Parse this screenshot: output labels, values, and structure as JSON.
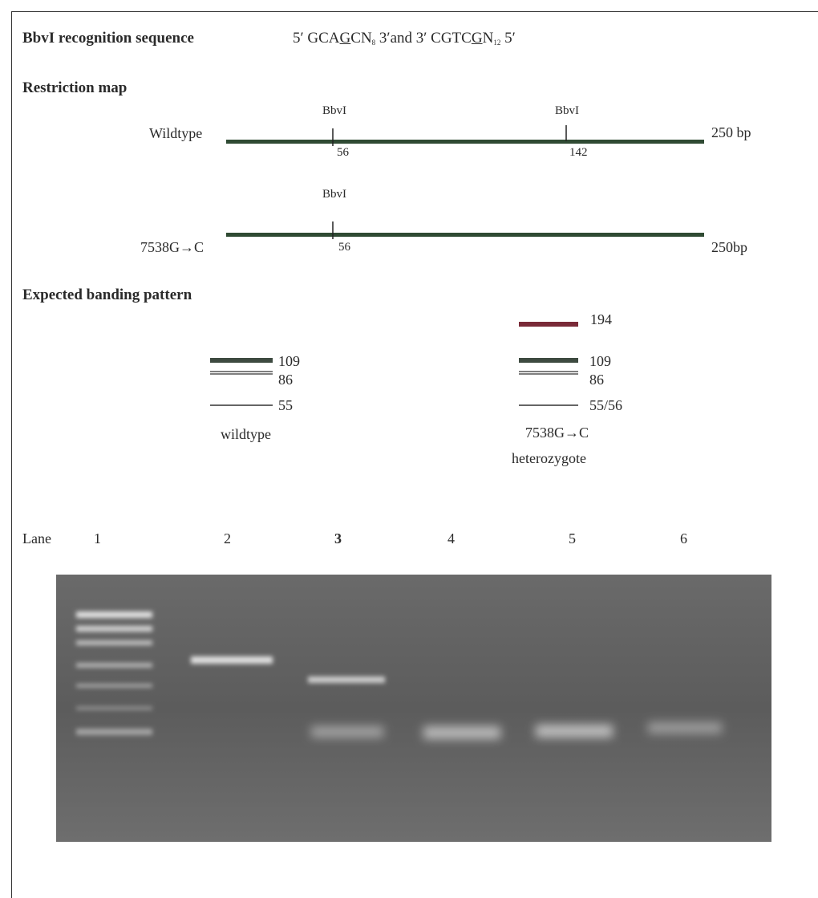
{
  "recognition": {
    "heading": "BbvI recognition sequence",
    "sequence_parts": [
      "5′ GCA",
      "G",
      "CN",
      "8",
      " 3′and 3′ CGTC",
      "G",
      "N",
      "12",
      " 5′"
    ]
  },
  "restriction_map": {
    "heading": "Restriction map",
    "maps": [
      {
        "label": "Wildtype",
        "sites": [
          {
            "enzyme": "BbvI",
            "position": "56"
          },
          {
            "enzyme": "BbvI",
            "position": "142"
          }
        ],
        "size": "250 bp"
      },
      {
        "label": "7538G→C",
        "sites": [
          {
            "enzyme": "BbvI",
            "position": "56"
          }
        ],
        "size": "250bp"
      }
    ]
  },
  "banding": {
    "heading": "Expected banding pattern",
    "patterns": [
      {
        "bands": [
          "109",
          "86",
          "55"
        ],
        "label": [
          "wildtype"
        ]
      },
      {
        "bands": [
          "194",
          "109",
          "86",
          "55/56"
        ],
        "label": [
          "7538G→C",
          "heterozygote"
        ]
      }
    ]
  },
  "gel": {
    "lane_heading": "Lane",
    "lanes": [
      "1",
      "2",
      "3",
      "4",
      "5",
      "6"
    ]
  }
}
